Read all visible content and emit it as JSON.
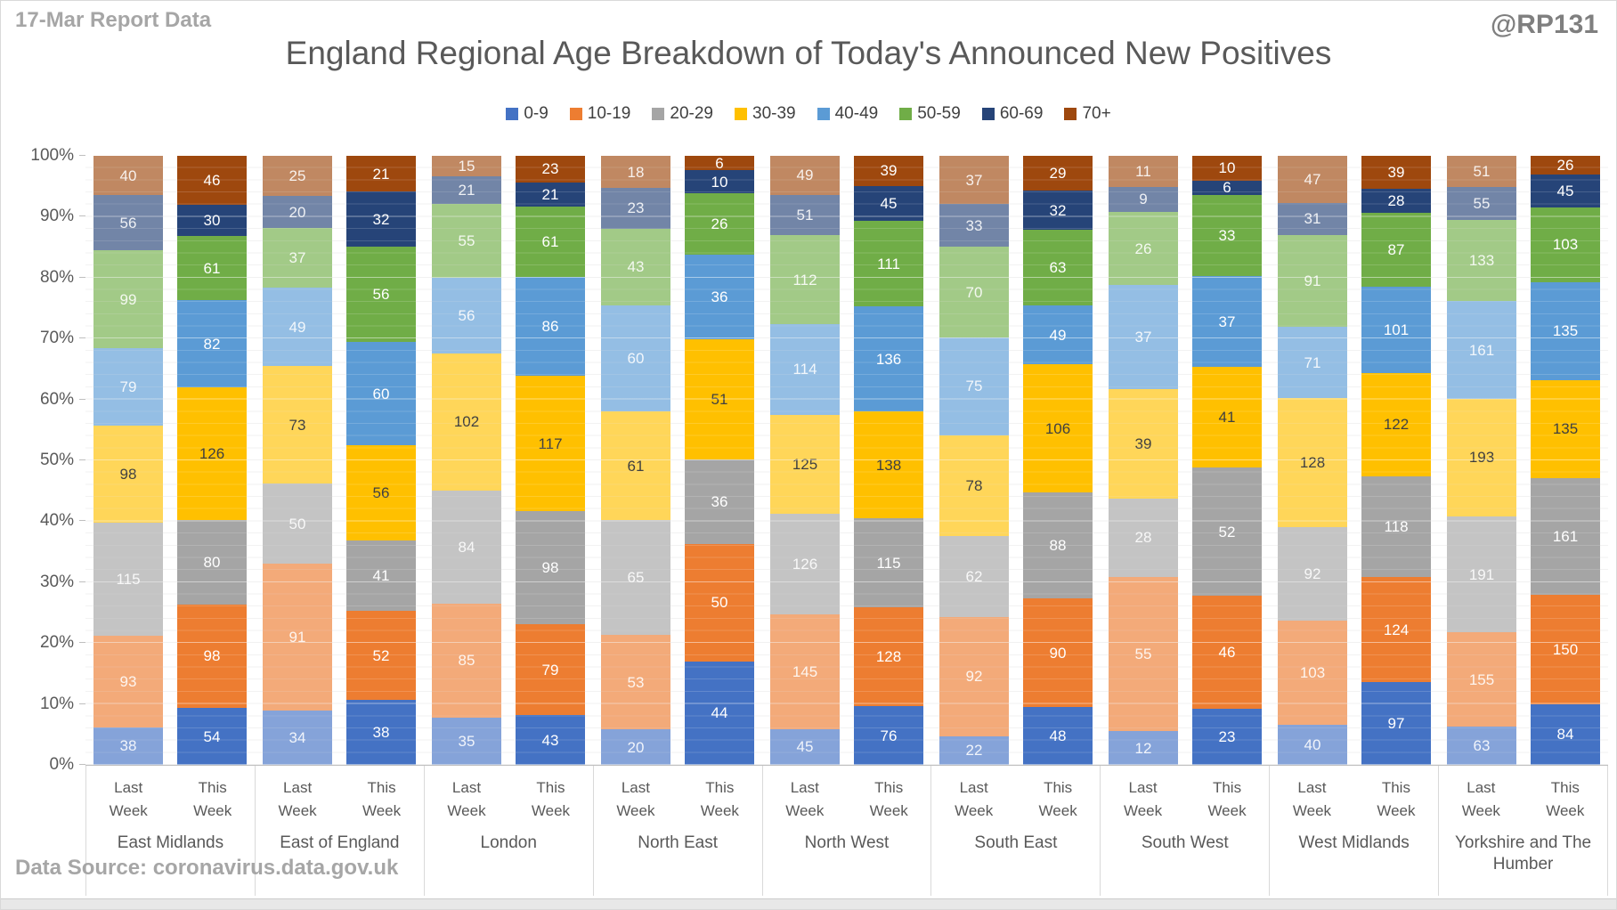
{
  "header": {
    "report_label": "17-Mar Report Data",
    "watermark": "@RP131"
  },
  "footer": {
    "source": "Data Source: coronavirus.data.gov.uk"
  },
  "chart_data": {
    "type": "bar",
    "stacking": "percent",
    "title": "England Regional Age Breakdown of Today's Announced New Positives",
    "legend_position": "top",
    "grid": "minor 2% and major 10% horizontal lines",
    "y_axis": {
      "min": 0,
      "max": 100,
      "ticks": [
        "0%",
        "10%",
        "20%",
        "30%",
        "40%",
        "50%",
        "60%",
        "70%",
        "80%",
        "90%",
        "100%"
      ]
    },
    "bar_labels": [
      "Last Week",
      "This Week"
    ],
    "last_week_style": "same colors at ~65% opacity",
    "series_meta": [
      {
        "name": "0-9",
        "color": "#4472C4",
        "label_color": "#FFFFFF"
      },
      {
        "name": "10-19",
        "color": "#ED7D31",
        "label_color": "#FFFFFF"
      },
      {
        "name": "20-29",
        "color": "#A5A5A5",
        "label_color": "#FFFFFF"
      },
      {
        "name": "30-39",
        "color": "#FFC000",
        "label_color": "#404040"
      },
      {
        "name": "40-49",
        "color": "#5B9BD5",
        "label_color": "#FFFFFF"
      },
      {
        "name": "50-59",
        "color": "#70AD47",
        "label_color": "#FFFFFF"
      },
      {
        "name": "60-69",
        "color": "#264478",
        "label_color": "#FFFFFF"
      },
      {
        "name": "70+",
        "color": "#9E480E",
        "label_color": "#FFFFFF"
      }
    ],
    "regions": [
      {
        "name": "East Midlands",
        "last_week": [
          38,
          93,
          115,
          98,
          79,
          99,
          56,
          40
        ],
        "this_week": [
          54,
          98,
          80,
          126,
          82,
          61,
          30,
          46
        ]
      },
      {
        "name": "East of England",
        "last_week": [
          34,
          91,
          50,
          73,
          49,
          37,
          20,
          25
        ],
        "this_week": [
          38,
          52,
          41,
          56,
          60,
          56,
          32,
          21
        ]
      },
      {
        "name": "London",
        "last_week": [
          35,
          85,
          84,
          102,
          56,
          55,
          21,
          15
        ],
        "this_week": [
          43,
          79,
          98,
          117,
          86,
          61,
          21,
          23
        ]
      },
      {
        "name": "North East",
        "last_week": [
          20,
          53,
          65,
          61,
          60,
          43,
          23,
          18
        ],
        "this_week": [
          44,
          50,
          36,
          51,
          36,
          26,
          10,
          6
        ]
      },
      {
        "name": "North West",
        "last_week": [
          45,
          145,
          126,
          125,
          114,
          112,
          51,
          49
        ],
        "this_week": [
          76,
          128,
          115,
          138,
          136,
          111,
          45,
          39
        ]
      },
      {
        "name": "South East",
        "last_week": [
          22,
          92,
          62,
          78,
          75,
          70,
          33,
          37
        ],
        "this_week": [
          48,
          90,
          88,
          106,
          49,
          63,
          32,
          29
        ]
      },
      {
        "name": "South West",
        "last_week": [
          12,
          55,
          28,
          39,
          37,
          26,
          9,
          11
        ],
        "this_week": [
          23,
          46,
          52,
          41,
          37,
          33,
          6,
          10
        ]
      },
      {
        "name": "West Midlands",
        "last_week": [
          40,
          103,
          92,
          128,
          71,
          91,
          31,
          47
        ],
        "this_week": [
          97,
          124,
          118,
          122,
          101,
          87,
          28,
          39
        ]
      },
      {
        "name": "Yorkshire and The Humber",
        "last_week": [
          63,
          155,
          191,
          193,
          161,
          133,
          55,
          51
        ],
        "this_week": [
          84,
          150,
          161,
          135,
          135,
          103,
          45,
          26
        ]
      }
    ]
  }
}
